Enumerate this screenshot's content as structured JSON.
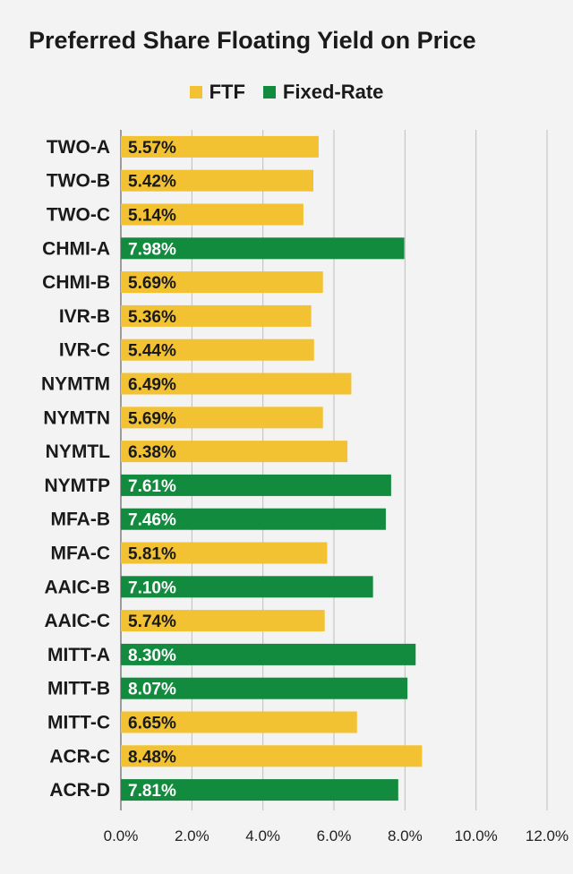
{
  "chart_data": {
    "type": "bar",
    "orientation": "horizontal",
    "title": "Preferred Share Floating Yield on Price",
    "legend": [
      {
        "name": "FTF",
        "color": "#f2c233"
      },
      {
        "name": "Fixed-Rate",
        "color": "#128b3e"
      }
    ],
    "legend_position": "top",
    "categories": [
      "TWO-A",
      "TWO-B",
      "TWO-C",
      "CHMI-A",
      "CHMI-B",
      "IVR-B",
      "IVR-C",
      "NYMTM",
      "NYMTN",
      "NYMTL",
      "NYMTP",
      "MFA-B",
      "MFA-C",
      "AAIC-B",
      "AAIC-C",
      "MITT-A",
      "MITT-B",
      "MITT-C",
      "ACR-C",
      "ACR-D"
    ],
    "values": [
      5.57,
      5.42,
      5.14,
      7.98,
      5.69,
      5.36,
      5.44,
      6.49,
      5.69,
      6.38,
      7.61,
      7.46,
      5.81,
      7.1,
      5.74,
      8.3,
      8.07,
      6.65,
      8.48,
      7.81
    ],
    "value_labels": [
      "5.57%",
      "5.42%",
      "5.14%",
      "7.98%",
      "5.69%",
      "5.36%",
      "5.44%",
      "6.49%",
      "5.69%",
      "6.38%",
      "7.61%",
      "7.46%",
      "5.81%",
      "7.10%",
      "5.74%",
      "8.30%",
      "8.07%",
      "6.65%",
      "8.48%",
      "7.81%"
    ],
    "series_type": [
      "FTF",
      "FTF",
      "FTF",
      "Fixed-Rate",
      "FTF",
      "FTF",
      "FTF",
      "FTF",
      "FTF",
      "FTF",
      "Fixed-Rate",
      "Fixed-Rate",
      "FTF",
      "Fixed-Rate",
      "FTF",
      "Fixed-Rate",
      "Fixed-Rate",
      "FTF",
      "FTF",
      "Fixed-Rate"
    ],
    "xlim": [
      0,
      12
    ],
    "xticks": [
      0,
      2,
      4,
      6,
      8,
      10,
      12
    ],
    "xtick_labels": [
      "0.0%",
      "2.0%",
      "4.0%",
      "6.0%",
      "8.0%",
      "10.0%",
      "12.0%"
    ],
    "grid": true,
    "colors": {
      "FTF": "#f2c233",
      "Fixed-Rate": "#128b3e",
      "grid": "#bdbdbd",
      "background": "#f3f3f3"
    }
  }
}
